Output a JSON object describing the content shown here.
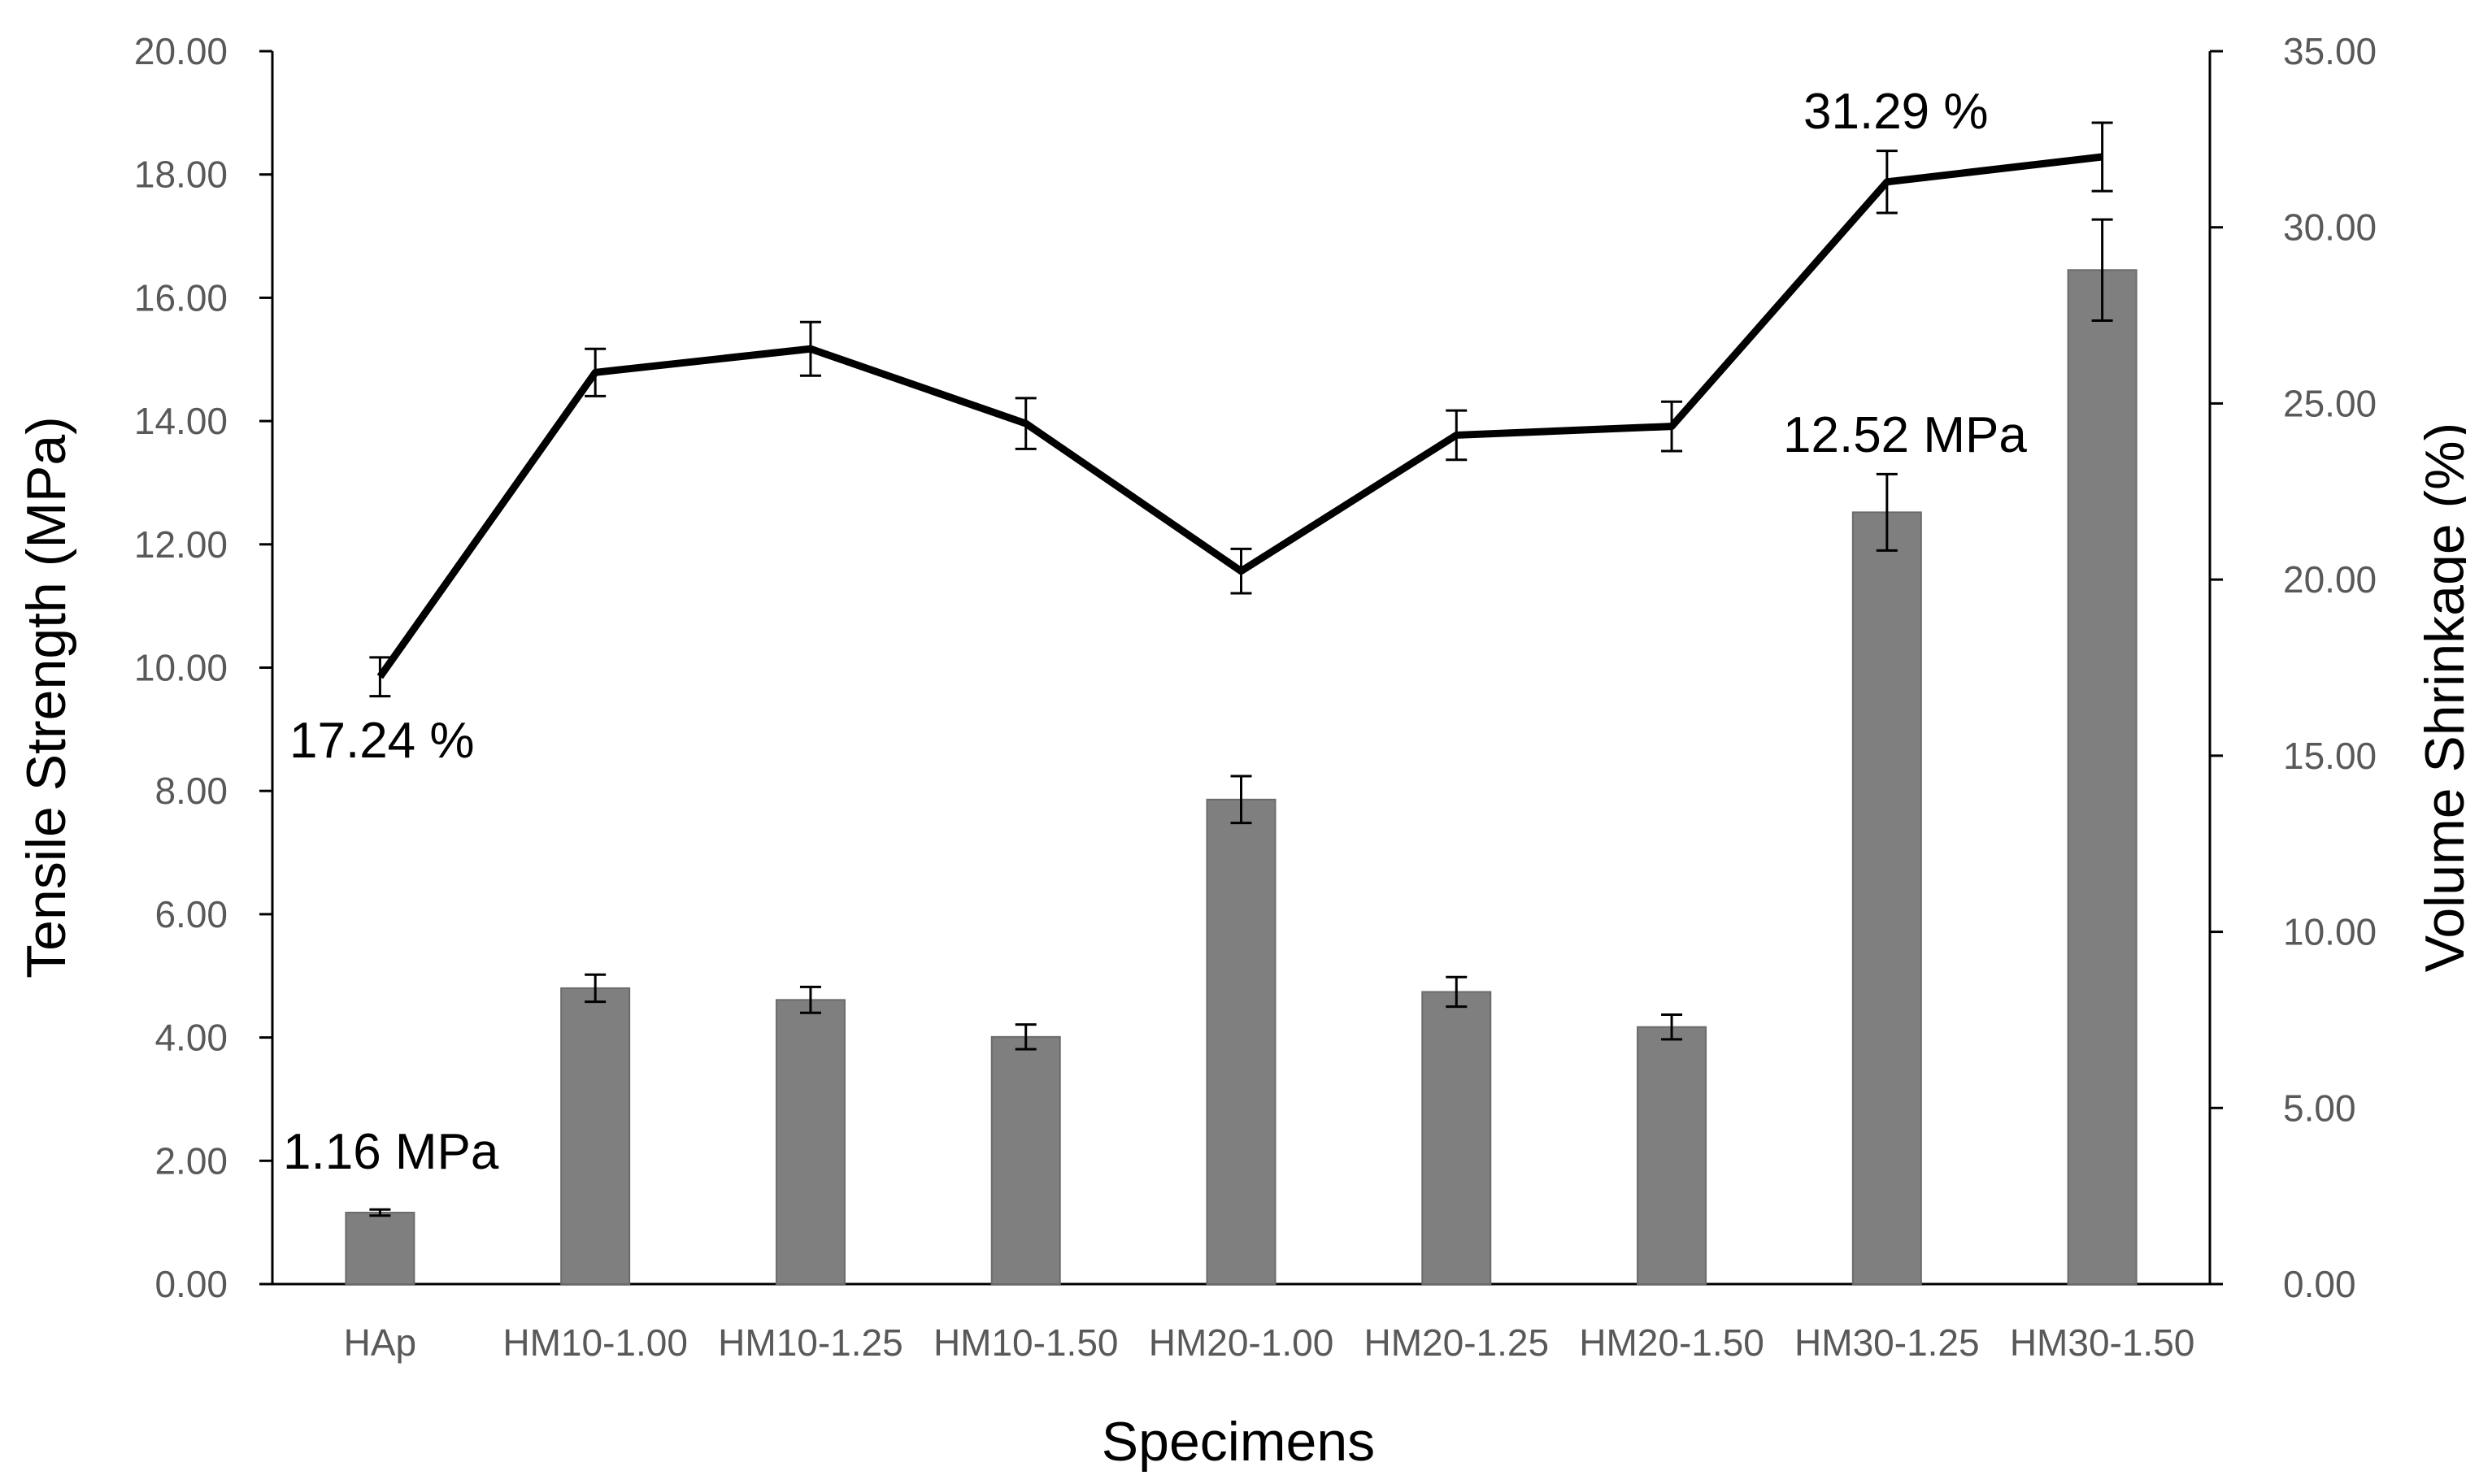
{
  "chart_data": {
    "type": "bar",
    "title": "",
    "xlabel": "Specimens",
    "categories": [
      "HAp",
      "HM10-1.00",
      "HM10-1.25",
      "HM10-1.50",
      "HM20-1.00",
      "HM20-1.25",
      "HM20-1.50",
      "HM30-1.25",
      "HM30-1.50"
    ],
    "y_left": {
      "label": "Tensile Strength (MPa)",
      "lim": [
        0,
        20
      ],
      "ticks": [
        "0.00",
        "2.00",
        "4.00",
        "6.00",
        "8.00",
        "10.00",
        "12.00",
        "14.00",
        "16.00",
        "18.00",
        "20.00"
      ]
    },
    "y_right": {
      "label": "Volume Shrinkage (%)",
      "lim": [
        0,
        35
      ],
      "ticks": [
        "0.00",
        "5.00",
        "10.00",
        "15.00",
        "20.00",
        "25.00",
        "30.00",
        "35.00"
      ]
    },
    "series": [
      {
        "type": "bar",
        "axis": "left",
        "color": "#7f7f7f",
        "values": [
          1.16,
          4.8,
          4.61,
          4.01,
          7.86,
          4.74,
          4.17,
          12.52,
          16.45
        ],
        "errors": [
          0.05,
          0.22,
          0.21,
          0.2,
          0.38,
          0.24,
          0.2,
          0.62,
          0.82
        ]
      },
      {
        "type": "line",
        "axis": "right",
        "color": "#000000",
        "values": [
          17.24,
          25.88,
          26.55,
          24.43,
          20.24,
          24.1,
          24.35,
          31.29,
          32.0
        ],
        "errors": [
          0.55,
          0.67,
          0.76,
          0.72,
          0.63,
          0.7,
          0.7,
          0.88,
          0.97
        ]
      }
    ],
    "annotations": [
      "1.16 MPa",
      "12.52 MPa",
      "17.24 %",
      "31.29 %"
    ],
    "grid": false,
    "legend": "none"
  }
}
